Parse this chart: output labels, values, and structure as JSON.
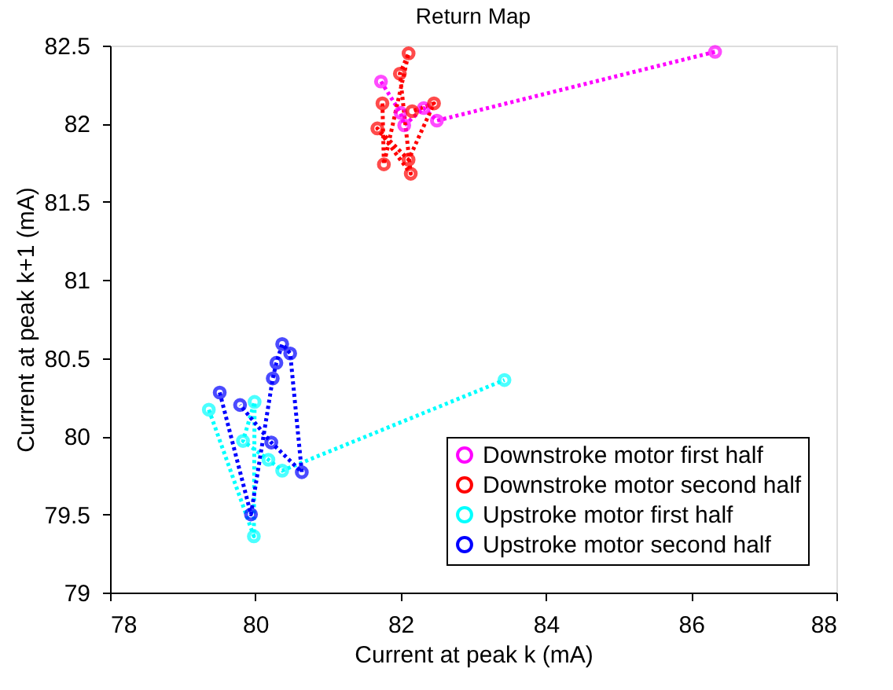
{
  "chart_data": {
    "type": "line",
    "title": "Return Map",
    "xlabel": "Current at peak k (mA)",
    "ylabel": "Current at peak k+1 (mA)",
    "xlim": [
      78,
      88
    ],
    "ylim": [
      79,
      82.5
    ],
    "xticks": [
      78,
      80,
      82,
      84,
      86,
      88
    ],
    "yticks": [
      79,
      79.5,
      80,
      80.5,
      81,
      81.5,
      82,
      82.5
    ],
    "grid": false,
    "legend": "bottom right",
    "marker": "circle",
    "line_style": "dotted",
    "series": [
      {
        "name": "Downstroke motor first half",
        "color": "#ff00ff",
        "x": [
          81.73,
          82.0,
          82.05,
          82.32,
          82.5,
          86.33
        ],
        "values": [
          82.27,
          82.07,
          81.99,
          82.1,
          82.02,
          82.46
        ]
      },
      {
        "name": "Downstroke motor second half",
        "color": "#ff0000",
        "x": [
          81.75,
          81.77,
          82.11,
          81.99,
          82.14,
          81.68,
          82.11,
          82.46,
          82.16
        ],
        "values": [
          82.13,
          81.74,
          82.45,
          82.32,
          81.68,
          81.97,
          81.77,
          82.13,
          82.08
        ]
      },
      {
        "name": "Upstroke motor first half",
        "color": "#00ffff",
        "x": [
          79.36,
          79.98,
          79.99,
          79.83,
          80.18,
          80.37,
          83.43
        ],
        "values": [
          80.17,
          79.36,
          80.22,
          79.97,
          79.85,
          79.78,
          80.36
        ]
      },
      {
        "name": "Upstroke motor second half",
        "color": "#0000ff",
        "x": [
          79.51,
          79.94,
          80.24,
          80.29,
          80.37,
          80.48,
          80.64,
          80.22,
          79.79
        ],
        "values": [
          80.28,
          79.5,
          80.37,
          80.47,
          80.59,
          80.53,
          79.77,
          79.96,
          80.2
        ]
      }
    ]
  }
}
